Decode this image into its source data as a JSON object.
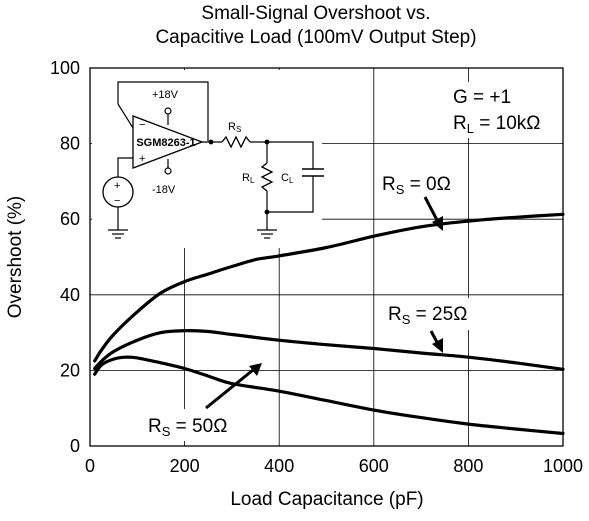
{
  "chart_data": {
    "type": "line",
    "title": "Small-Signal Overshoot vs.",
    "subtitle": "Capacitive Load (100mV Output Step)",
    "xlabel": "Load Capacitance (pF)",
    "ylabel": "Overshoot (%)",
    "xlim": [
      0,
      1000
    ],
    "ylim": [
      0,
      100
    ],
    "x_ticks": [
      0,
      200,
      400,
      600,
      800,
      1000
    ],
    "y_ticks": [
      0,
      20,
      40,
      60,
      80,
      100
    ],
    "grid": true,
    "series": [
      {
        "label_main": "R",
        "label_sub": "S",
        "label_tail": " = 0Ω",
        "x": [
          10,
          25,
          50,
          100,
          150,
          200,
          250,
          300,
          350,
          400,
          500,
          600,
          700,
          800,
          900,
          1000
        ],
        "y": [
          22.5,
          25.5,
          29.5,
          35.5,
          40.5,
          43.5,
          45.5,
          47.5,
          49.3,
          50.3,
          52.5,
          55.5,
          58,
          59.5,
          60.5,
          61.3
        ]
      },
      {
        "label_main": "R",
        "label_sub": "S",
        "label_tail": " = 25Ω",
        "x": [
          10,
          25,
          50,
          100,
          150,
          200,
          250,
          300,
          400,
          500,
          600,
          700,
          800,
          900,
          1000
        ],
        "y": [
          20.5,
          22.5,
          25,
          28,
          30,
          30.5,
          30.3,
          29.5,
          28,
          26.8,
          25.8,
          24.6,
          23.5,
          22,
          20.3
        ]
      },
      {
        "label_main": "R",
        "label_sub": "S",
        "label_tail": " = 50Ω",
        "x": [
          10,
          25,
          50,
          75,
          100,
          150,
          200,
          250,
          300,
          400,
          500,
          600,
          700,
          800,
          900,
          1000
        ],
        "y": [
          19,
          21.5,
          23,
          23.5,
          23.3,
          22,
          20.5,
          18.5,
          16.5,
          14.5,
          12,
          9.5,
          7.5,
          5.8,
          4.5,
          3.3
        ]
      }
    ],
    "inset_text": {
      "gain": "G = +1",
      "rl_main": "R",
      "rl_sub": "L",
      "rl_tail": " = 10kΩ"
    },
    "schematic": {
      "part": "SGM8263-1",
      "vpos": "+18V",
      "vneg": "-18V",
      "minus": "−",
      "plus": "+",
      "rs_main": "R",
      "rs_sub": "S",
      "rl_main": "R",
      "rl_sub": "L",
      "cl_main": "C",
      "cl_sub": "L",
      "src_plus": "+",
      "src_minus": "−"
    }
  }
}
